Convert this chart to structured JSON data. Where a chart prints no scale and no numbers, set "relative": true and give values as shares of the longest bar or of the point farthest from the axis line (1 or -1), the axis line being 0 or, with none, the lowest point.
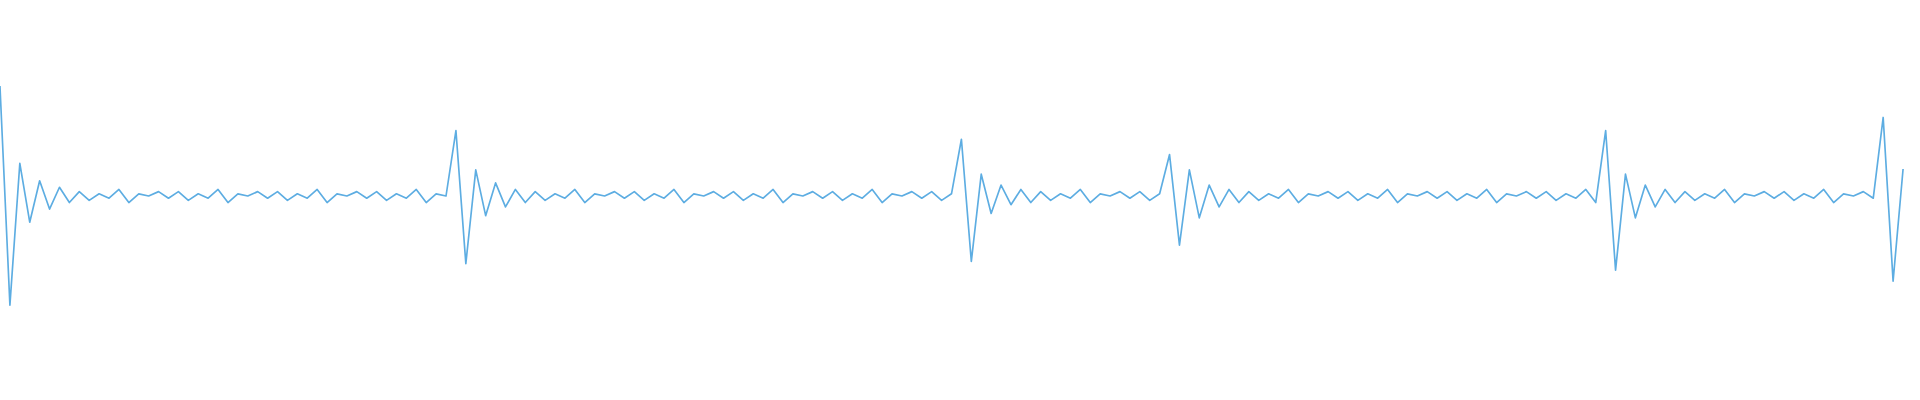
{
  "chart_data": {
    "type": "line",
    "relative": true,
    "color": "#5dade2",
    "grid": false,
    "legend": false,
    "categories": [
      null,
      null,
      null,
      null,
      null,
      null,
      null,
      null,
      null,
      null,
      null,
      null,
      null,
      null,
      null,
      null,
      null,
      null,
      null,
      null,
      null,
      null,
      null,
      null,
      null,
      null,
      null,
      null,
      null,
      null,
      null,
      null,
      null,
      null,
      null,
      null,
      null,
      null,
      null,
      null,
      null,
      null,
      null,
      null,
      null,
      null,
      null,
      null,
      null,
      null,
      null,
      null,
      null,
      null,
      null,
      null,
      null,
      null,
      null,
      null,
      null,
      null,
      null,
      null,
      null,
      null,
      null,
      null,
      null,
      null,
      null,
      null,
      null,
      null,
      null,
      null,
      null,
      null,
      null,
      null,
      null,
      null,
      null,
      null,
      null,
      null,
      null,
      null,
      null,
      null,
      null,
      null,
      null,
      null,
      null,
      null,
      null,
      null,
      null,
      null,
      null,
      null,
      null,
      null,
      null,
      null,
      null,
      null,
      null,
      null,
      null,
      null,
      null,
      null,
      null,
      null,
      null,
      null,
      null,
      null,
      null,
      null,
      null,
      null,
      null,
      null,
      null,
      null,
      null,
      null,
      null,
      null,
      null,
      null,
      null,
      null,
      null,
      null,
      null,
      null,
      null,
      null,
      null,
      null,
      null,
      null,
      null,
      null,
      null,
      null,
      null,
      null,
      null,
      null,
      null,
      null,
      null,
      null,
      null,
      null,
      null,
      null,
      null,
      null,
      null,
      null,
      null,
      null,
      null,
      null,
      null,
      null,
      null,
      null,
      null,
      null,
      null,
      null,
      null,
      null,
      null,
      null,
      null,
      null,
      null,
      null,
      null,
      null,
      null,
      null,
      null,
      null,
      null
    ],
    "values": [
      1.0,
      0.0,
      0.65,
      0.38,
      0.57,
      0.44,
      0.54,
      0.47,
      0.52,
      0.48,
      0.51,
      0.49,
      0.53,
      0.47,
      0.51,
      0.5,
      0.52,
      0.49,
      0.52,
      0.48,
      0.51,
      0.49,
      0.53,
      0.47,
      0.51,
      0.5,
      0.52,
      0.49,
      0.52,
      0.48,
      0.51,
      0.49,
      0.53,
      0.47,
      0.51,
      0.5,
      0.52,
      0.49,
      0.52,
      0.48,
      0.51,
      0.49,
      0.53,
      0.47,
      0.51,
      0.5,
      0.8,
      0.19,
      0.62,
      0.41,
      0.56,
      0.45,
      0.53,
      0.47,
      0.52,
      0.48,
      0.51,
      0.49,
      0.53,
      0.47,
      0.51,
      0.5,
      0.52,
      0.49,
      0.52,
      0.48,
      0.51,
      0.49,
      0.53,
      0.47,
      0.51,
      0.5,
      0.52,
      0.49,
      0.52,
      0.48,
      0.51,
      0.49,
      0.53,
      0.47,
      0.51,
      0.5,
      0.52,
      0.49,
      0.52,
      0.48,
      0.51,
      0.49,
      0.53,
      0.47,
      0.51,
      0.5,
      0.52,
      0.49,
      0.52,
      0.48,
      0.51,
      0.76,
      0.2,
      0.6,
      0.42,
      0.55,
      0.46,
      0.53,
      0.47,
      0.52,
      0.48,
      0.51,
      0.49,
      0.53,
      0.47,
      0.51,
      0.5,
      0.52,
      0.49,
      0.52,
      0.48,
      0.51,
      0.69,
      0.275,
      0.62,
      0.4,
      0.55,
      0.45,
      0.53,
      0.47,
      0.52,
      0.48,
      0.51,
      0.49,
      0.53,
      0.47,
      0.51,
      0.5,
      0.52,
      0.49,
      0.52,
      0.48,
      0.51,
      0.49,
      0.53,
      0.47,
      0.51,
      0.5,
      0.52,
      0.49,
      0.52,
      0.48,
      0.51,
      0.49,
      0.53,
      0.47,
      0.51,
      0.5,
      0.52,
      0.49,
      0.52,
      0.48,
      0.51,
      0.49,
      0.53,
      0.47,
      0.8,
      0.16,
      0.6,
      0.4,
      0.55,
      0.45,
      0.53,
      0.47,
      0.52,
      0.48,
      0.51,
      0.49,
      0.53,
      0.47,
      0.51,
      0.5,
      0.52,
      0.49,
      0.52,
      0.48,
      0.51,
      0.49,
      0.53,
      0.47,
      0.51,
      0.5,
      0.52,
      0.49,
      0.86,
      0.11,
      0.62
    ]
  }
}
